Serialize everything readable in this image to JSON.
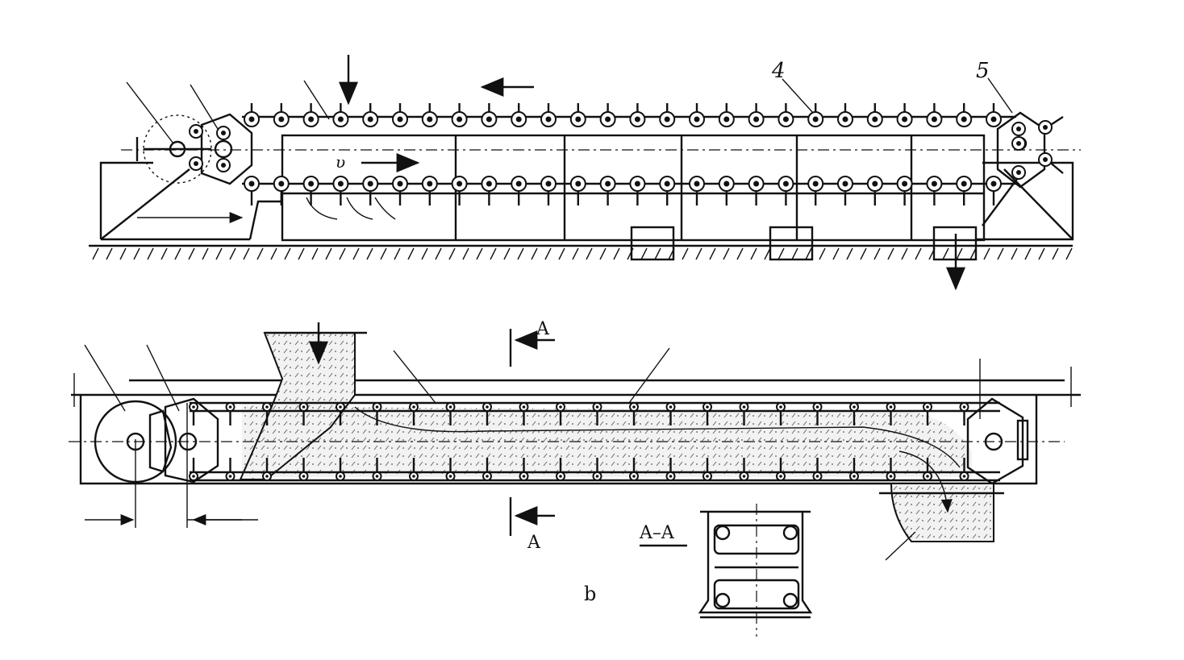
{
  "labels": {
    "part_4": "4",
    "part_5": "5",
    "velocity": "υ",
    "section_top": "A",
    "section_bottom": "A",
    "section_view": "A–A",
    "subfigure": "b"
  }
}
